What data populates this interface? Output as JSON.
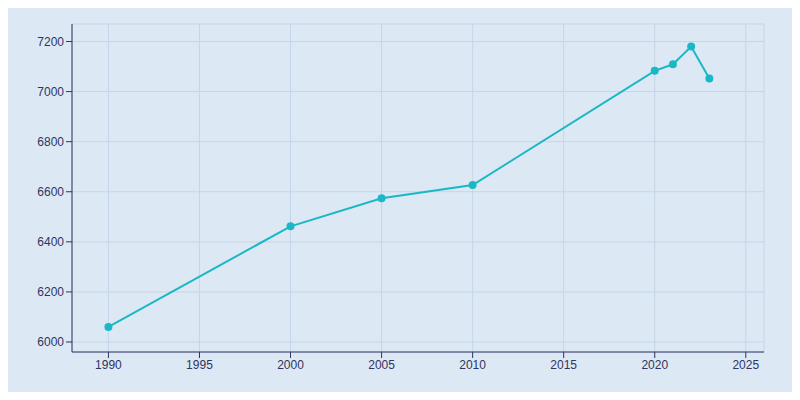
{
  "chart_data": {
    "type": "line",
    "x": [
      1990,
      2000,
      2005,
      2010,
      2020,
      2021,
      2022,
      2023
    ],
    "values": [
      6060,
      6462,
      6574,
      6627,
      7083,
      7109,
      7180,
      7052
    ],
    "color": "#1ab8c4",
    "marker": "circle",
    "xlim": [
      1988,
      2026
    ],
    "ylim": [
      5960,
      7270
    ],
    "xticks": [
      1990,
      1995,
      2000,
      2005,
      2010,
      2015,
      2020,
      2025
    ],
    "yticks": [
      6000,
      6200,
      6400,
      6600,
      6800,
      7000,
      7200
    ],
    "grid": true
  }
}
